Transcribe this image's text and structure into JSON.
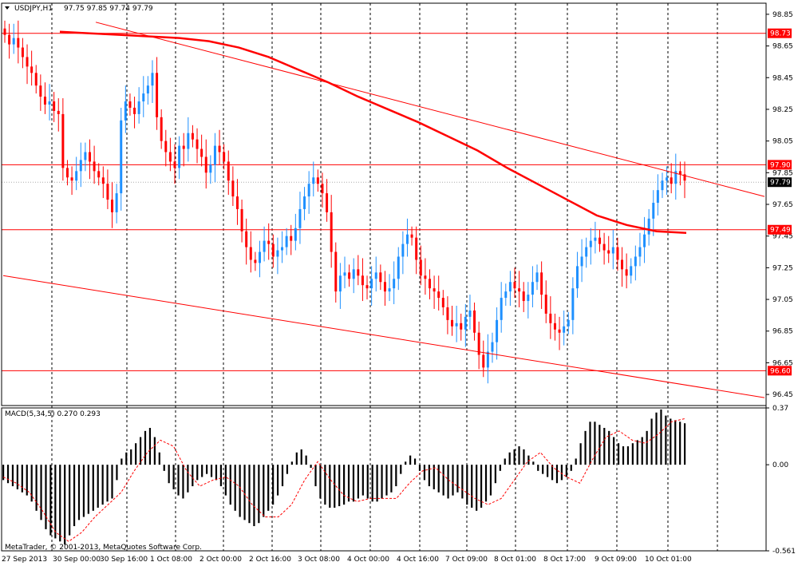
{
  "header": {
    "symbol": "USDJPY,H1",
    "ohlc": "97.75 97.85 97.74 97.79",
    "macd_label": "MACD(5,34,5) 0.270 0.293",
    "copyright": "MetaTrader, © 2001-2013, MetaQuotes Software Corp."
  },
  "colors": {
    "bull": "#1e90ff",
    "bear": "#ff0000",
    "line": "#ff0000",
    "grid": "#000000",
    "macd_hist": "#000000",
    "macd_signal": "#ff0000",
    "label_bg": "#ff0000",
    "current_bg": "#000000"
  },
  "chart_data": [
    {
      "type": "candlestick",
      "title": "USDJPY,H1",
      "ylim": [
        96.38,
        98.92
      ],
      "y_ticks": [
        "98.85",
        "98.65",
        "98.45",
        "98.25",
        "98.05",
        "97.85",
        "97.65",
        "97.45",
        "97.25",
        "97.05",
        "96.85",
        "96.65",
        "96.45"
      ],
      "x_ticks": [
        "27 Sep 2013",
        "30 Sep 00:00",
        "30 Sep 16:00",
        "1 Oct 08:00",
        "2 Oct 00:00",
        "2 Oct 16:00",
        "3 Oct 08:00",
        "4 Oct 00:00",
        "4 Oct 16:00",
        "7 Oct 09:00",
        "8 Oct 01:00",
        "8 Oct 17:00",
        "9 Oct 09:00",
        "10 Oct 01:00"
      ],
      "horizontal_levels": [
        {
          "value": 98.73,
          "label": "98.73"
        },
        {
          "value": 97.9,
          "label": "97.90"
        },
        {
          "value": 97.49,
          "label": "97.49"
        },
        {
          "value": 96.6,
          "label": "96.60"
        }
      ],
      "current_price": {
        "value": 97.79,
        "label": "97.79"
      },
      "series": [
        {
          "name": "close",
          "x_index_start": 0,
          "values": [
            98.72,
            98.66,
            98.7,
            98.64,
            98.58,
            98.52,
            98.48,
            98.4,
            98.33,
            98.28,
            98.3,
            98.24,
            98.22,
            97.88,
            97.82,
            97.8,
            97.86,
            97.93,
            97.98,
            97.92,
            97.86,
            97.82,
            97.78,
            97.68,
            97.6,
            97.72,
            98.18,
            98.3,
            98.26,
            98.22,
            98.3,
            98.35,
            98.4,
            98.48,
            98.2,
            98.05,
            97.98,
            97.92,
            97.88,
            98.02,
            98.0,
            98.1,
            98.06,
            98.0,
            97.95,
            97.85,
            97.9,
            98.02,
            97.98,
            97.92,
            97.8,
            97.7,
            97.62,
            97.48,
            97.38,
            97.3,
            97.28,
            97.35,
            97.42,
            97.4,
            97.32,
            97.36,
            97.38,
            97.45,
            97.42,
            97.5,
            97.62,
            97.7,
            97.78,
            97.82,
            97.78,
            97.72,
            97.6,
            97.35,
            97.1,
            97.2,
            97.22,
            97.18,
            97.24,
            97.2,
            97.14,
            97.12,
            97.18,
            97.22,
            97.16,
            97.1,
            97.12,
            97.18,
            97.32,
            97.4,
            97.46,
            97.44,
            97.3,
            97.2,
            97.18,
            97.12,
            97.1,
            97.06,
            97.0,
            96.92,
            96.88,
            96.9,
            96.86,
            96.94,
            96.98,
            96.84,
            96.7,
            96.62,
            96.72,
            96.78,
            96.92,
            97.06,
            97.1,
            97.16,
            97.12,
            97.1,
            97.04,
            97.08,
            97.16,
            97.22,
            97.08,
            96.96,
            96.9,
            96.86,
            96.84,
            96.88,
            96.92,
            97.12,
            97.26,
            97.32,
            97.38,
            97.42,
            97.44,
            97.4,
            97.36,
            97.34,
            97.38,
            97.3,
            97.24,
            97.2,
            97.26,
            97.32,
            97.38,
            97.46,
            97.56,
            97.66,
            97.74,
            97.8,
            97.82,
            97.78,
            97.86,
            97.84,
            97.8
          ]
        },
        {
          "name": "moving_average",
          "values": [
            98.74,
            98.73,
            98.72,
            98.71,
            98.7,
            98.68,
            98.64,
            98.58,
            98.5,
            98.42,
            98.33,
            98.25,
            98.17,
            98.08,
            97.99,
            97.88,
            97.78,
            97.68,
            97.58,
            97.52,
            97.48,
            97.47
          ]
        },
        {
          "name": "upper_trendline",
          "values": [
            98.8,
            97.7
          ]
        },
        {
          "name": "lower_trendline",
          "values": [
            97.2,
            96.43
          ]
        }
      ]
    },
    {
      "type": "bar",
      "title": "MACD(5,34,5) 0.270 0.293",
      "ylim": [
        -0.561,
        0.37
      ],
      "y_ticks": [
        "0.37",
        "0.00",
        "-0.561"
      ],
      "series": [
        {
          "name": "main",
          "values": [
            -0.1,
            -0.12,
            -0.14,
            -0.16,
            -0.18,
            -0.2,
            -0.24,
            -0.3,
            -0.36,
            -0.42,
            -0.46,
            -0.48,
            -0.5,
            -0.52,
            -0.46,
            -0.4,
            -0.36,
            -0.34,
            -0.32,
            -0.3,
            -0.28,
            -0.26,
            -0.24,
            -0.22,
            -0.1,
            0.04,
            0.08,
            0.1,
            0.14,
            0.18,
            0.22,
            0.24,
            0.18,
            0.08,
            -0.04,
            -0.12,
            -0.16,
            -0.2,
            -0.22,
            -0.18,
            -0.14,
            -0.1,
            -0.08,
            -0.06,
            -0.08,
            -0.1,
            -0.14,
            -0.2,
            -0.26,
            -0.3,
            -0.34,
            -0.36,
            -0.38,
            -0.4,
            -0.38,
            -0.34,
            -0.3,
            -0.26,
            -0.2,
            -0.14,
            -0.06,
            0.02,
            0.08,
            0.1,
            0.06,
            -0.02,
            -0.14,
            -0.22,
            -0.26,
            -0.28,
            -0.28,
            -0.27,
            -0.26,
            -0.24,
            -0.24,
            -0.22,
            -0.2,
            -0.22,
            -0.24,
            -0.24,
            -0.22,
            -0.2,
            -0.18,
            -0.14,
            -0.06,
            0.02,
            0.06,
            0.04,
            -0.04,
            -0.1,
            -0.14,
            -0.16,
            -0.18,
            -0.2,
            -0.22,
            -0.2,
            -0.18,
            -0.22,
            -0.26,
            -0.28,
            -0.3,
            -0.28,
            -0.24,
            -0.2,
            -0.12,
            -0.04,
            0.04,
            0.08,
            0.1,
            0.12,
            0.1,
            0.06,
            0.02,
            -0.04,
            -0.06,
            -0.08,
            -0.1,
            -0.12,
            -0.1,
            -0.08,
            -0.04,
            0.04,
            0.14,
            0.22,
            0.28,
            0.28,
            0.26,
            0.24,
            0.22,
            0.18,
            0.14,
            0.12,
            0.12,
            0.14,
            0.16,
            0.18,
            0.22,
            0.3,
            0.34,
            0.36,
            0.32,
            0.3,
            0.29,
            0.28,
            0.27
          ]
        },
        {
          "name": "signal",
          "values": [
            -0.08,
            -0.12,
            -0.18,
            -0.3,
            -0.44,
            -0.5,
            -0.44,
            -0.34,
            -0.26,
            -0.18,
            -0.04,
            0.08,
            0.16,
            0.12,
            -0.04,
            -0.14,
            -0.1,
            -0.08,
            -0.14,
            -0.26,
            -0.34,
            -0.34,
            -0.26,
            -0.1,
            0.02,
            -0.1,
            -0.2,
            -0.24,
            -0.22,
            -0.22,
            -0.22,
            -0.12,
            -0.04,
            -0.02,
            -0.1,
            -0.16,
            -0.22,
            -0.26,
            -0.22,
            -0.1,
            0.02,
            0.08,
            -0.02,
            -0.08,
            -0.12,
            0.04,
            0.18,
            0.22,
            0.16,
            0.14,
            0.2,
            0.28,
            0.3
          ]
        }
      ]
    }
  ]
}
